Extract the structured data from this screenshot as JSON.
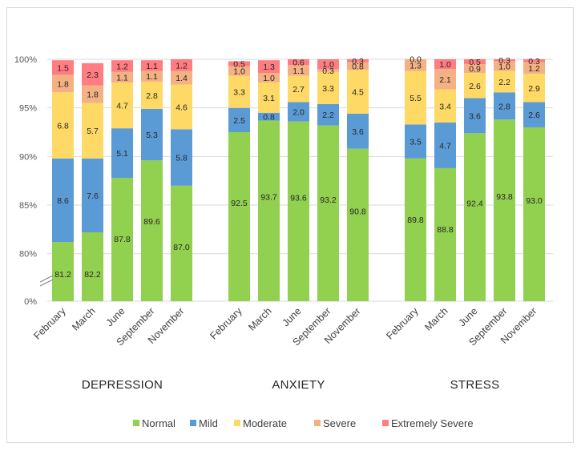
{
  "chart_data": {
    "type": "bar",
    "stacked": true,
    "y_ticks": [
      "0%",
      "80%",
      "85%",
      "90%",
      "95%",
      "100%"
    ],
    "y_break": true,
    "ylim": [
      78,
      100
    ],
    "legend_position": "bottom",
    "grid": true,
    "series": [
      {
        "name": "Normal",
        "color": "#92d050"
      },
      {
        "name": "Mild",
        "color": "#5b9bd5"
      },
      {
        "name": "Moderate",
        "color": "#ffd966"
      },
      {
        "name": "Severe",
        "color": "#f4b183"
      },
      {
        "name": "Extremely Severe",
        "color": "#ff7c80"
      }
    ],
    "groups": [
      {
        "name": "DEPRESSION",
        "categories": [
          "February",
          "March",
          "June",
          "September",
          "November"
        ],
        "values": [
          [
            81.2,
            8.6,
            6.8,
            1.8,
            1.5
          ],
          [
            82.2,
            7.6,
            5.7,
            1.8,
            2.3
          ],
          [
            87.8,
            5.1,
            4.7,
            1.1,
            1.2
          ],
          [
            89.6,
            5.3,
            2.8,
            1.1,
            1.1
          ],
          [
            87.0,
            5.8,
            4.6,
            1.4,
            1.2
          ]
        ]
      },
      {
        "name": "ANXIETY",
        "categories": [
          "February",
          "March",
          "June",
          "September",
          "November"
        ],
        "values": [
          [
            92.5,
            2.5,
            3.3,
            1.0,
            0.5
          ],
          [
            93.7,
            0.8,
            3.1,
            1.0,
            1.3
          ],
          [
            93.6,
            2.0,
            2.7,
            1.1,
            0.6
          ],
          [
            93.2,
            2.2,
            3.3,
            0.3,
            1.0
          ],
          [
            90.8,
            3.6,
            4.5,
            0.8,
            0.3
          ]
        ]
      },
      {
        "name": "STRESS",
        "categories": [
          "February",
          "March",
          "June",
          "September",
          "November"
        ],
        "values": [
          [
            89.8,
            3.5,
            5.5,
            1.3,
            0.0
          ],
          [
            88.8,
            4.7,
            3.4,
            2.1,
            1.0
          ],
          [
            92.4,
            3.6,
            2.6,
            0.9,
            0.5
          ],
          [
            93.8,
            2.8,
            2.2,
            1.0,
            0.3
          ],
          [
            93.0,
            2.6,
            2.9,
            1.2,
            0.3
          ]
        ]
      }
    ]
  }
}
